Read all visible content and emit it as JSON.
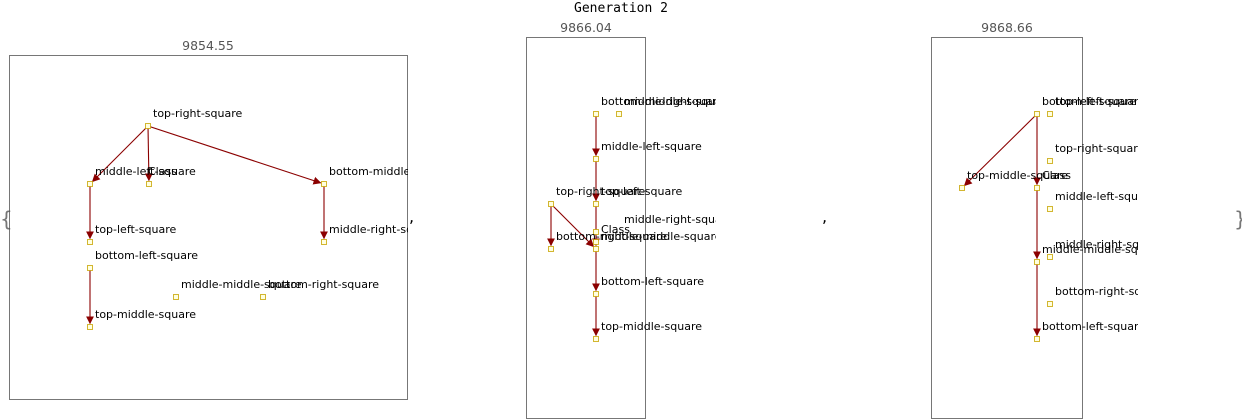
{
  "generation_title": "Generation 2",
  "punctuation": {
    "open_brace": "{",
    "close_brace": "}",
    "separator": ","
  },
  "colors": {
    "edge": "#8b0000",
    "node_fill": "#ffffe0",
    "node_stroke": "#c8a400",
    "frame": "#555555"
  },
  "panels": [
    {
      "score": "9854.55",
      "nodes": [
        {
          "id": "trs",
          "label": "top-right-square"
        },
        {
          "id": "mls",
          "label": "middle-left-square"
        },
        {
          "id": "cls",
          "label": "Class"
        },
        {
          "id": "bms",
          "label": "bottom-middle-square"
        },
        {
          "id": "tls",
          "label": "top-left-square"
        },
        {
          "id": "mrs",
          "label": "middle-right-square"
        },
        {
          "id": "bls",
          "label": "bottom-left-square"
        },
        {
          "id": "mms",
          "label": "middle-middle-square"
        },
        {
          "id": "brs",
          "label": "bottom-right-square"
        },
        {
          "id": "tms",
          "label": "top-middle-square"
        }
      ],
      "edges": [
        {
          "from": "trs",
          "to": "mls"
        },
        {
          "from": "trs",
          "to": "cls"
        },
        {
          "from": "trs",
          "to": "bms"
        },
        {
          "from": "mls",
          "to": "tls"
        },
        {
          "from": "bms",
          "to": "mrs"
        },
        {
          "from": "bls",
          "to": "tms"
        }
      ]
    },
    {
      "score": "9866.04",
      "nodes": [
        {
          "id": "bms",
          "label": "bottom-middle-square"
        },
        {
          "id": "mrs2",
          "label": "middle-right-square"
        },
        {
          "id": "mls",
          "label": "middle-left-square"
        },
        {
          "id": "trs",
          "label": "top-right-square"
        },
        {
          "id": "tls",
          "label": "top-left-square"
        },
        {
          "id": "mrs",
          "label": "middle-right-square"
        },
        {
          "id": "brs",
          "label": "bottom-right-square"
        },
        {
          "id": "cls",
          "label": "Class"
        },
        {
          "id": "mms",
          "label": "middle-middle-square"
        },
        {
          "id": "bls",
          "label": "bottom-left-square"
        },
        {
          "id": "tms",
          "label": "top-middle-square"
        }
      ],
      "edges": [
        {
          "from": "bms",
          "to": "mls"
        },
        {
          "from": "mls",
          "to": "tls"
        },
        {
          "from": "trs",
          "to": "brs"
        },
        {
          "from": "trs",
          "to": "mms"
        },
        {
          "from": "tls",
          "to": "mms"
        },
        {
          "from": "mms",
          "to": "bls"
        },
        {
          "from": "bls",
          "to": "tms"
        }
      ]
    },
    {
      "score": "9868.66",
      "nodes": [
        {
          "id": "bls0",
          "label": "bottom-left-square"
        },
        {
          "id": "tls",
          "label": "top-left-square"
        },
        {
          "id": "trs",
          "label": "top-right-square"
        },
        {
          "id": "tms",
          "label": "top-middle-square"
        },
        {
          "id": "cls",
          "label": "Class"
        },
        {
          "id": "mls",
          "label": "middle-left-square"
        },
        {
          "id": "mrs",
          "label": "middle-right-square"
        },
        {
          "id": "mms",
          "label": "middle-middle-square"
        },
        {
          "id": "brs",
          "label": "bottom-right-square"
        },
        {
          "id": "bls",
          "label": "bottom-left-square"
        }
      ],
      "edges": [
        {
          "from": "bls0",
          "to": "tms"
        },
        {
          "from": "bls0",
          "to": "cls"
        },
        {
          "from": "cls",
          "to": "mms"
        },
        {
          "from": "mms",
          "to": "bls"
        }
      ]
    }
  ]
}
